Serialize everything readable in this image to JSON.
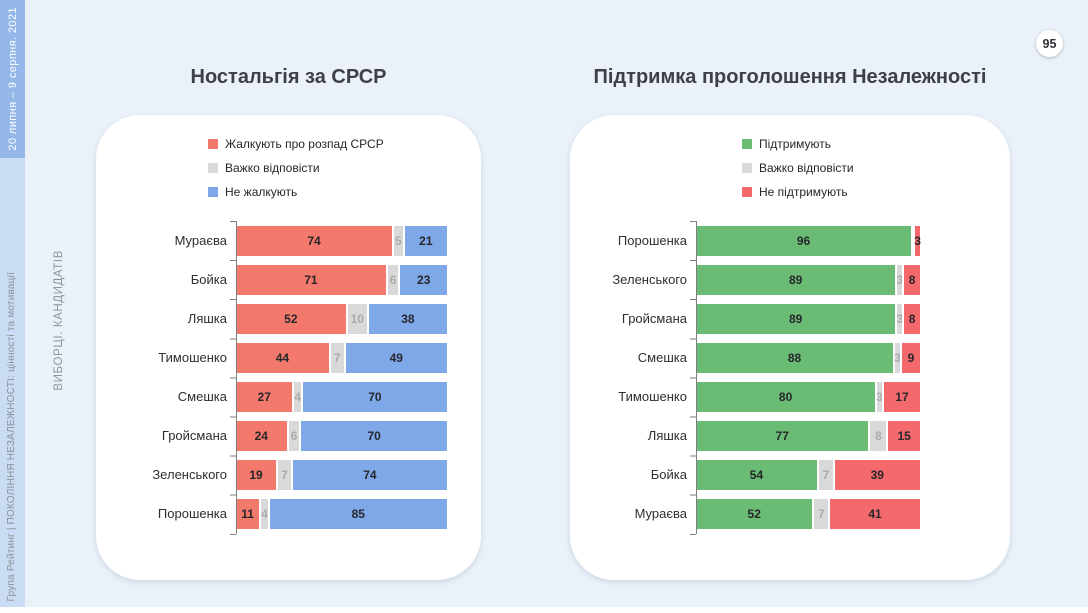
{
  "page": {
    "number": "95"
  },
  "sidebar": {
    "date_range": "20 липня – 9 серпня. 2021",
    "report_title": "Група Рейтинг | ПОКОЛІННЯ НЕЗАЛЕЖНОСТІ: цінності та мотивації",
    "section_label": "ВИБОРЦІ. КАНДИДАТІВ"
  },
  "colors": {
    "page_bg": "#eaf1f9",
    "sidebar_date_bg": "#92b7e8",
    "sidebar_footer_bg": "#c9dcf4",
    "regret": "#f2796c",
    "no_regret": "#7fa8e9",
    "undecided": "#d9d9d9",
    "support": "#6abc74",
    "no_support": "#f4696b"
  },
  "charts": [
    {
      "title": "Ностальгія за СРСР",
      "legend": [
        "Жалкують про розпад СРСР",
        "Важко відповісти",
        "Не жалкують"
      ],
      "rows": [
        {
          "label": "Мураєва",
          "seg_labels": [
            "74",
            "5",
            "21"
          ]
        },
        {
          "label": "Бойка",
          "seg_labels": [
            "71",
            "6",
            "23"
          ]
        },
        {
          "label": "Ляшка",
          "seg_labels": [
            "52",
            "10",
            "38"
          ]
        },
        {
          "label": "Тимошенко",
          "seg_labels": [
            "44",
            "7",
            "49"
          ]
        },
        {
          "label": "Смешка",
          "seg_labels": [
            "27",
            "4",
            "70"
          ]
        },
        {
          "label": "Гройсмана",
          "seg_labels": [
            "24",
            "6",
            "70"
          ]
        },
        {
          "label": "Зеленського",
          "seg_labels": [
            "19",
            "7",
            "74"
          ]
        },
        {
          "label": "Порошенка",
          "seg_labels": [
            "11",
            "4",
            "85"
          ]
        }
      ]
    },
    {
      "title": "Підтримка проголошення Незалежності",
      "legend": [
        "Підтримують",
        "Важко відповісти",
        "Не підтримують"
      ],
      "rows": [
        {
          "label": "Порошенка",
          "seg_labels": [
            "96",
            "",
            "3"
          ]
        },
        {
          "label": "Зеленського",
          "seg_labels": [
            "89",
            "3",
            "8"
          ]
        },
        {
          "label": "Гройсмана",
          "seg_labels": [
            "89",
            "3",
            "8"
          ]
        },
        {
          "label": "Смешка",
          "seg_labels": [
            "88",
            "3",
            "9"
          ]
        },
        {
          "label": "Тимошенко",
          "seg_labels": [
            "80",
            "3",
            "17"
          ]
        },
        {
          "label": "Ляшка",
          "seg_labels": [
            "77",
            "8",
            "15"
          ]
        },
        {
          "label": "Бойка",
          "seg_labels": [
            "54",
            "7",
            "39"
          ]
        },
        {
          "label": "Мураєва",
          "seg_labels": [
            "52",
            "7",
            "41"
          ]
        }
      ]
    }
  ],
  "chart_data": [
    {
      "type": "bar",
      "orientation": "horizontal",
      "stacked": true,
      "title": "Ностальгія за СРСР",
      "categories": [
        "Мураєва",
        "Бойка",
        "Ляшка",
        "Тимошенко",
        "Смешка",
        "Гройсмана",
        "Зеленського",
        "Порошенка"
      ],
      "series": [
        {
          "name": "Жалкують про розпад СРСР",
          "color": "#f2796c",
          "values": [
            74,
            71,
            52,
            44,
            27,
            24,
            19,
            11
          ]
        },
        {
          "name": "Важко відповісти",
          "color": "#d9d9d9",
          "values": [
            5,
            6,
            10,
            7,
            4,
            6,
            7,
            4
          ]
        },
        {
          "name": "Не жалкують",
          "color": "#7fa8e9",
          "values": [
            21,
            23,
            38,
            49,
            70,
            70,
            74,
            85
          ]
        }
      ],
      "xlim": [
        0,
        100
      ],
      "value_unit": "%",
      "legend_position": "top",
      "grid": false
    },
    {
      "type": "bar",
      "orientation": "horizontal",
      "stacked": true,
      "title": "Підтримка проголошення Незалежності",
      "categories": [
        "Порошенка",
        "Зеленського",
        "Гройсмана",
        "Смешка",
        "Тимошенко",
        "Ляшка",
        "Бойка",
        "Мураєва"
      ],
      "series": [
        {
          "name": "Підтримують",
          "color": "#6abc74",
          "values": [
            96,
            89,
            89,
            88,
            80,
            77,
            54,
            52
          ]
        },
        {
          "name": "Важко відповісти",
          "color": "#d9d9d9",
          "values": [
            1,
            3,
            3,
            3,
            3,
            8,
            7,
            7
          ]
        },
        {
          "name": "Не підтримують",
          "color": "#f4696b",
          "values": [
            3,
            8,
            8,
            9,
            17,
            15,
            39,
            41
          ]
        }
      ],
      "xlim": [
        0,
        100
      ],
      "value_unit": "%",
      "legend_position": "top",
      "grid": false
    }
  ]
}
